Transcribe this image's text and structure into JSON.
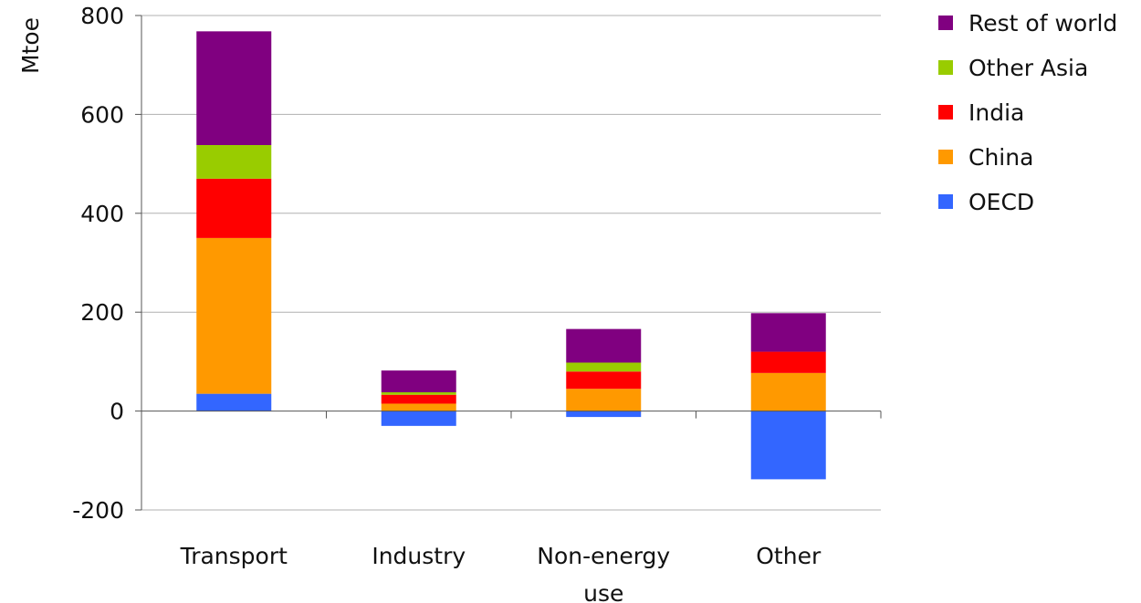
{
  "chart_data": {
    "type": "bar",
    "stacked": true,
    "title": "",
    "xlabel": "",
    "ylabel": "Mtoe",
    "ylim": [
      -200,
      800
    ],
    "yticks": [
      -200,
      0,
      200,
      400,
      600,
      800
    ],
    "grid": true,
    "legend_position": "right",
    "categories": [
      [
        "Transport"
      ],
      [
        "Industry"
      ],
      [
        "Non-energy",
        "use"
      ],
      [
        "Other"
      ]
    ],
    "series": [
      {
        "name": "OECD",
        "color": "#3366ff",
        "values": [
          35,
          -30,
          -12,
          -138
        ]
      },
      {
        "name": "China",
        "color": "#ff9900",
        "values": [
          315,
          15,
          45,
          77
        ]
      },
      {
        "name": "India",
        "color": "#ff0000",
        "values": [
          120,
          18,
          35,
          43
        ]
      },
      {
        "name": "Other Asia",
        "color": "#99cc00",
        "values": [
          68,
          5,
          18,
          0
        ]
      },
      {
        "name": "Rest of world",
        "color": "#800080",
        "values": [
          230,
          44,
          68,
          78
        ]
      }
    ],
    "legend_order": [
      "Rest of world",
      "Other Asia",
      "India",
      "China",
      "OECD"
    ]
  }
}
